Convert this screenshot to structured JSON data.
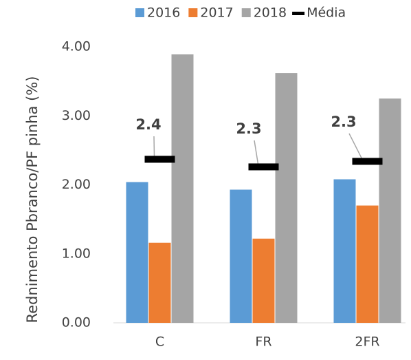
{
  "chart_data": {
    "type": "bar",
    "y_label": "Rednimento Pbranco/PF pinha (%)",
    "categories": [
      "C",
      "FR",
      "2FR"
    ],
    "series": [
      {
        "name": "2016",
        "color": "#5b9bd5",
        "values": [
          2.04,
          1.93,
          2.08
        ]
      },
      {
        "name": "2017",
        "color": "#ed7d31",
        "values": [
          1.16,
          1.22,
          1.7
        ]
      },
      {
        "name": "2018",
        "color": "#a5a5a5",
        "values": [
          3.89,
          3.62,
          3.25
        ]
      },
      {
        "name": "Média",
        "color": "#000000",
        "marker": "dash",
        "values": [
          2.37,
          2.26,
          2.34
        ],
        "value_labels": [
          "2.4",
          "2.3",
          "2.3"
        ]
      }
    ],
    "ylim": [
      0,
      4
    ],
    "yticks": [
      {
        "value": 0,
        "label": "0.00"
      },
      {
        "value": 1,
        "label": "1.00"
      },
      {
        "value": 2,
        "label": "2.00"
      },
      {
        "value": 3,
        "label": "3.00"
      },
      {
        "value": 4,
        "label": "4.00"
      }
    ],
    "legend": "top"
  }
}
